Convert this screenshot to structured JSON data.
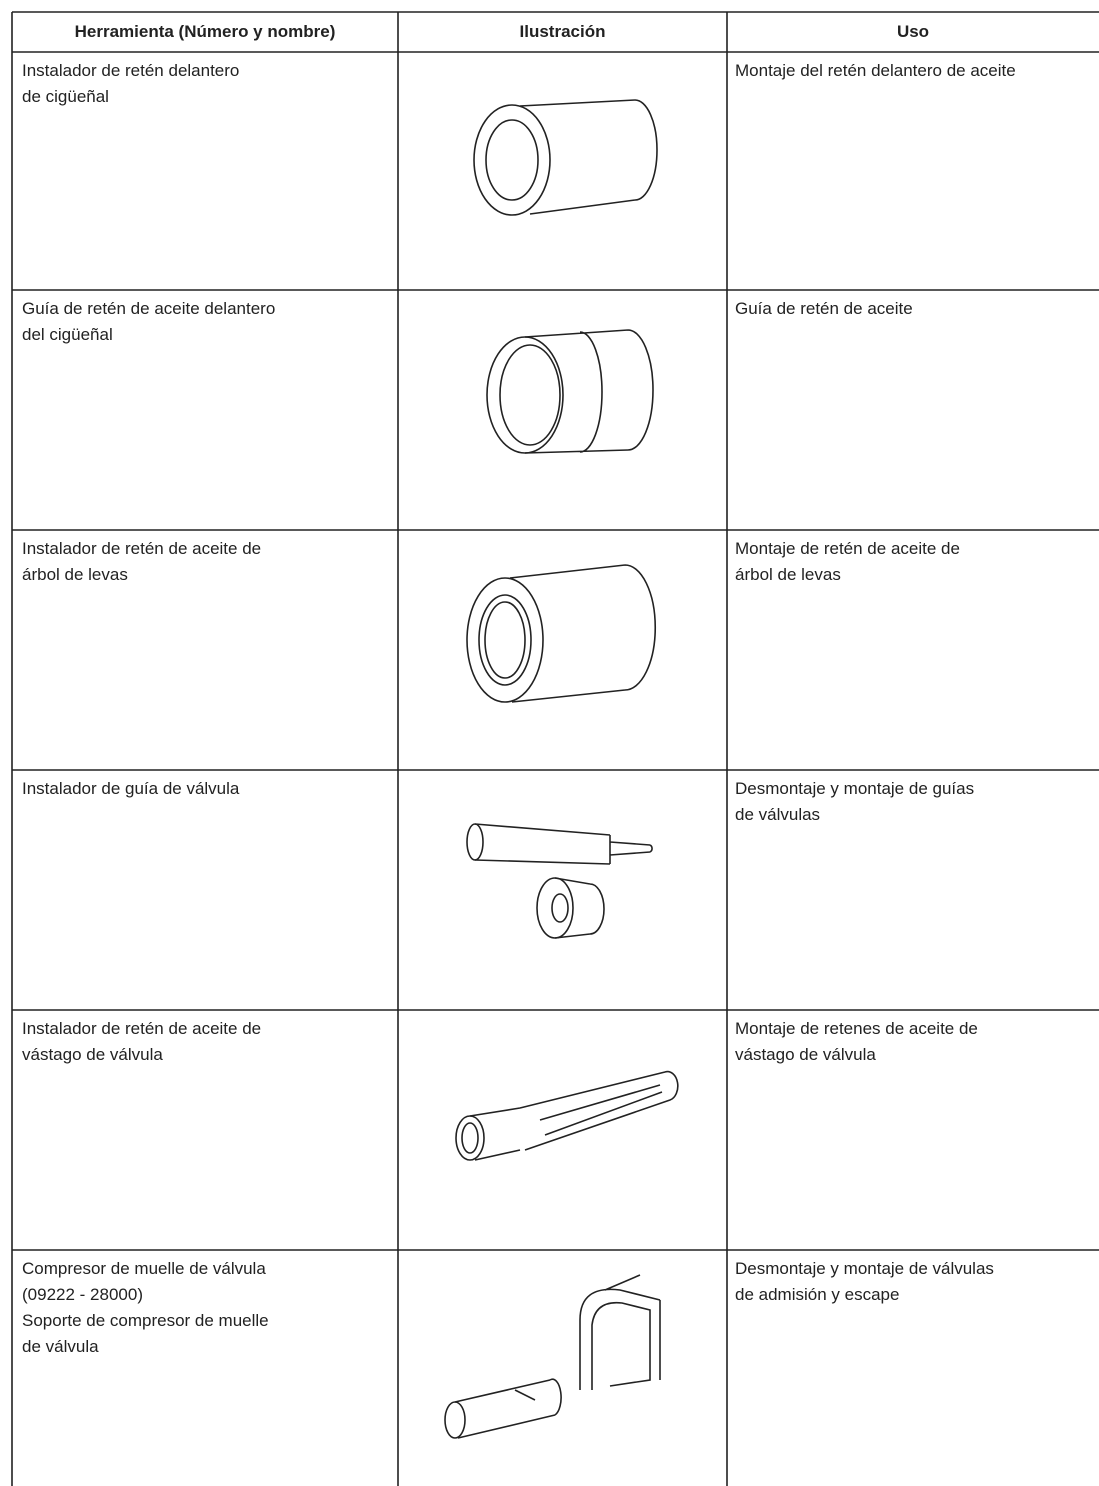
{
  "table": {
    "header": [
      "Herramienta (Número y nombre)",
      "Ilustración",
      "Uso"
    ],
    "rows": [
      [
        "Instalador de retén delantero\nde cigüeñal",
        "Montaje del retén delantero de aceite"
      ],
      [
        "Guía de retén de aceite delantero\ndel cigüeñal",
        "Guía de retén de aceite"
      ],
      [
        "Instalador de retén de aceite de\nárbol de levas",
        "Montaje de retén de aceite de\nárbol de levas"
      ],
      [
        "Instalador de guía de válvula",
        "Desmontaje y montaje de guías\nde válvulas"
      ],
      [
        "Instalador de retén de aceite de\nvástago de válvula",
        "Montaje de retenes de aceite de\nvástago de válvula"
      ],
      [
        "Compresor de muelle de válvula\n(09222 - 28000)\nSoporte de compresor de muelle\nde válvula",
        "Desmontaje y montaje de válvulas\nde admisión y escape"
      ]
    ]
  }
}
